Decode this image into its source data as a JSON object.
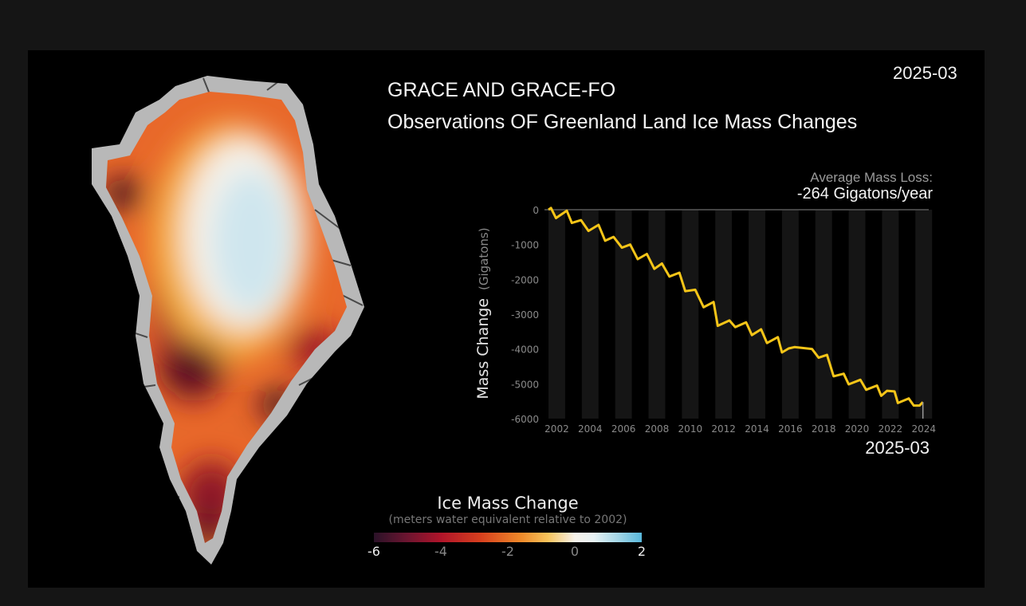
{
  "header": {
    "date": "2025-03",
    "title_line1": "GRACE AND GRACE-FO",
    "title_line2": "Observations OF Greenland Land Ice Mass Changes"
  },
  "summary": {
    "label": "Average Mass Loss:",
    "value": "-264 Gigatons/year"
  },
  "colors": {
    "line": "#f5c518",
    "background": "#000000",
    "outer": "#151515"
  },
  "colorbar": {
    "title": "Ice Mass Change",
    "subtitle": "(meters water equivalent relative to 2002)",
    "ticks": [
      "-6",
      "-4",
      "-2",
      "0",
      "2"
    ],
    "range": [
      -6,
      2
    ],
    "colormap": "dark red - orange - white - light blue"
  },
  "map": {
    "region": "Greenland"
  },
  "chart_data": {
    "type": "line",
    "title": "",
    "xlabel": "",
    "ylabel": "Mass Change",
    "ylabel_unit": "(Gigatons)",
    "date_label": "2025-03",
    "xlim": [
      2001.7,
      2024.5
    ],
    "ylim": [
      -6000,
      0
    ],
    "x_ticks": [
      "2002",
      "2004",
      "2006",
      "2008",
      "2010",
      "2012",
      "2014",
      "2016",
      "2018",
      "2020",
      "2022",
      "2024"
    ],
    "y_ticks": [
      "0",
      "-1000",
      "-2000",
      "-3000",
      "-4000",
      "-5000",
      "-6000"
    ],
    "grid": "alternating vertical year bands",
    "series": [
      {
        "x": [
          2001.7,
          2001.85,
          2002.15,
          2002.8,
          2003.1,
          2003.65,
          2004.1,
          2004.7,
          2005.1,
          2005.6,
          2006.1,
          2006.6,
          2007.05,
          2007.6,
          2008.05,
          2008.5,
          2008.95,
          2009.55,
          2009.9,
          2010.5,
          2011.0,
          2011.6,
          2011.85,
          2012.55,
          2012.9,
          2013.55,
          2013.9,
          2014.45,
          2014.8,
          2015.45,
          2015.7,
          2016.1,
          2016.45,
          2017.5,
          2017.9,
          2018.4,
          2018.8,
          2019.4,
          2019.7,
          2020.4,
          2020.75,
          2021.4,
          2021.65,
          2022.0,
          2022.45,
          2022.65,
          2023.3,
          2023.6,
          2023.95,
          2024.15
        ],
        "y": [
          0,
          50,
          -240,
          -30,
          -380,
          -300,
          -610,
          -435,
          -890,
          -780,
          -1090,
          -1000,
          -1420,
          -1270,
          -1700,
          -1545,
          -1920,
          -1810,
          -2340,
          -2300,
          -2800,
          -2650,
          -3335,
          -3180,
          -3370,
          -3235,
          -3600,
          -3435,
          -3830,
          -3660,
          -4100,
          -3985,
          -3945,
          -4000,
          -4250,
          -4170,
          -4785,
          -4710,
          -5015,
          -4885,
          -5170,
          -5050,
          -5345,
          -5200,
          -5220,
          -5550,
          -5420,
          -5625,
          -5625,
          -5525
        ]
      }
    ]
  }
}
